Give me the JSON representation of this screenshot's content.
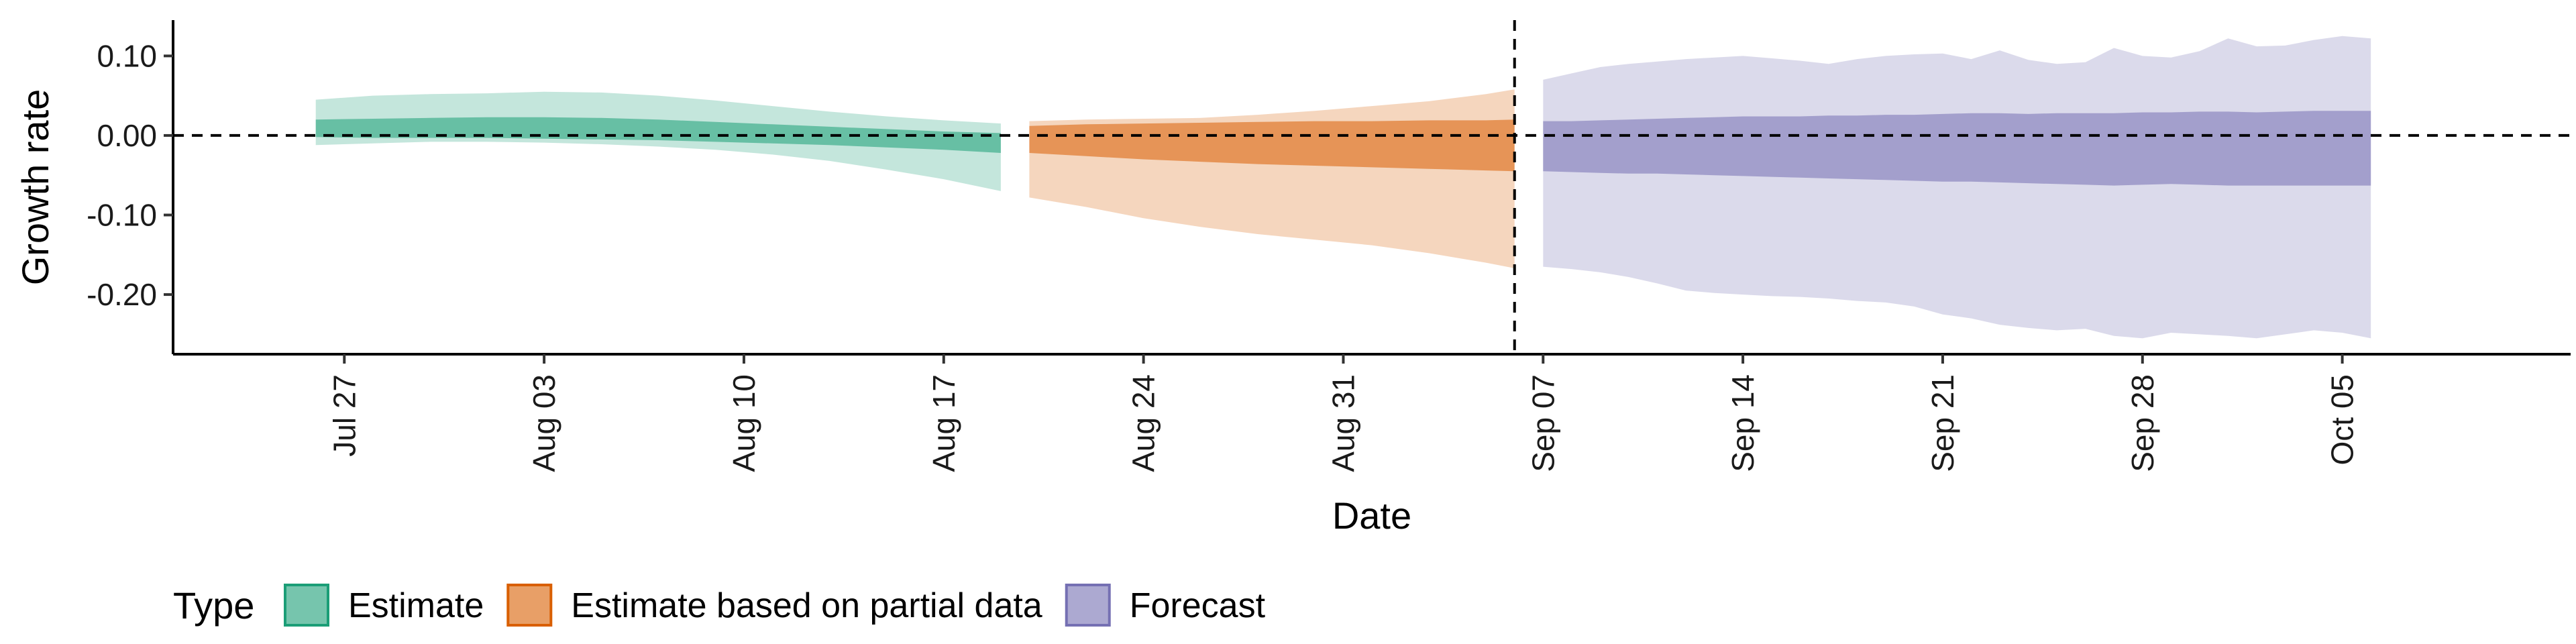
{
  "chart_data": {
    "type": "area",
    "xlabel": "Date",
    "ylabel": "Growth rate",
    "x_range": [
      "2021-07-21",
      "2021-10-13"
    ],
    "ylim": [
      -0.275,
      0.145
    ],
    "y_ticks": [
      0.1,
      0.0,
      -0.1,
      -0.2
    ],
    "y_tick_labels": [
      "0.10",
      "0.00",
      "-0.10",
      "-0.20"
    ],
    "x_ticks": [
      "2021-07-27",
      "2021-08-03",
      "2021-08-10",
      "2021-08-17",
      "2021-08-24",
      "2021-08-31",
      "2021-09-07",
      "2021-09-14",
      "2021-09-21",
      "2021-09-28",
      "2021-10-05"
    ],
    "x_tick_labels": [
      "Jul 27",
      "Aug 03",
      "Aug 10",
      "Aug 17",
      "Aug 24",
      "Aug 31",
      "Sep 07",
      "Sep 14",
      "Sep 21",
      "Sep 28",
      "Oct 05"
    ],
    "hline": 0.0,
    "vline": "2021-09-06",
    "grid": false,
    "legend": {
      "title": "Type",
      "position": "bottom-left",
      "items": [
        "Estimate",
        "Estimate based on partial data",
        "Forecast"
      ]
    },
    "colors": {
      "Estimate": "#1b9e77",
      "Estimate based on partial data": "#d95f02",
      "Forecast": "#7570b3"
    },
    "series": [
      {
        "name": "Estimate",
        "x": [
          "2021-07-26",
          "2021-07-28",
          "2021-07-30",
          "2021-08-01",
          "2021-08-03",
          "2021-08-05",
          "2021-08-07",
          "2021-08-09",
          "2021-08-11",
          "2021-08-13",
          "2021-08-15",
          "2021-08-17",
          "2021-08-19"
        ],
        "upper90": [
          0.045,
          0.05,
          0.052,
          0.053,
          0.055,
          0.054,
          0.05,
          0.044,
          0.037,
          0.03,
          0.024,
          0.019,
          0.015
        ],
        "upper50": [
          0.02,
          0.021,
          0.022,
          0.023,
          0.023,
          0.022,
          0.02,
          0.017,
          0.014,
          0.011,
          0.008,
          0.005,
          0.003
        ],
        "lower50": [
          -0.002,
          -0.003,
          -0.003,
          -0.003,
          -0.004,
          -0.005,
          -0.006,
          -0.008,
          -0.01,
          -0.012,
          -0.015,
          -0.018,
          -0.022
        ],
        "lower90": [
          -0.012,
          -0.01,
          -0.008,
          -0.008,
          -0.009,
          -0.011,
          -0.014,
          -0.018,
          -0.024,
          -0.032,
          -0.043,
          -0.055,
          -0.07
        ]
      },
      {
        "name": "Estimate based on partial data",
        "x": [
          "2021-08-20",
          "2021-08-22",
          "2021-08-24",
          "2021-08-26",
          "2021-08-28",
          "2021-08-30",
          "2021-09-01",
          "2021-09-03",
          "2021-09-05",
          "2021-09-06"
        ],
        "upper90": [
          0.018,
          0.02,
          0.021,
          0.022,
          0.026,
          0.031,
          0.037,
          0.043,
          0.052,
          0.058
        ],
        "upper50": [
          0.012,
          0.014,
          0.015,
          0.016,
          0.017,
          0.018,
          0.018,
          0.019,
          0.019,
          0.02
        ],
        "lower50": [
          -0.022,
          -0.026,
          -0.03,
          -0.033,
          -0.036,
          -0.038,
          -0.04,
          -0.042,
          -0.044,
          -0.045
        ],
        "lower90": [
          -0.078,
          -0.09,
          -0.104,
          -0.115,
          -0.124,
          -0.131,
          -0.138,
          -0.148,
          -0.16,
          -0.167
        ]
      },
      {
        "name": "Forecast",
        "x": [
          "2021-09-07",
          "2021-09-08",
          "2021-09-09",
          "2021-09-10",
          "2021-09-11",
          "2021-09-12",
          "2021-09-13",
          "2021-09-14",
          "2021-09-15",
          "2021-09-16",
          "2021-09-17",
          "2021-09-18",
          "2021-09-19",
          "2021-09-20",
          "2021-09-21",
          "2021-09-22",
          "2021-09-23",
          "2021-09-24",
          "2021-09-25",
          "2021-09-26",
          "2021-09-27",
          "2021-09-28",
          "2021-09-29",
          "2021-09-30",
          "2021-10-01",
          "2021-10-02",
          "2021-10-03",
          "2021-10-04",
          "2021-10-05",
          "2021-10-06"
        ],
        "upper90": [
          0.07,
          0.078,
          0.086,
          0.09,
          0.093,
          0.096,
          0.098,
          0.1,
          0.097,
          0.094,
          0.09,
          0.096,
          0.1,
          0.102,
          0.103,
          0.096,
          0.107,
          0.095,
          0.09,
          0.092,
          0.11,
          0.1,
          0.098,
          0.106,
          0.122,
          0.112,
          0.113,
          0.12,
          0.125,
          0.122
        ],
        "upper50": [
          0.018,
          0.018,
          0.019,
          0.02,
          0.021,
          0.022,
          0.023,
          0.024,
          0.024,
          0.024,
          0.025,
          0.025,
          0.026,
          0.026,
          0.027,
          0.028,
          0.028,
          0.027,
          0.028,
          0.028,
          0.028,
          0.029,
          0.029,
          0.03,
          0.03,
          0.029,
          0.03,
          0.031,
          0.031,
          0.031
        ],
        "lower50": [
          -0.045,
          -0.046,
          -0.047,
          -0.048,
          -0.048,
          -0.049,
          -0.05,
          -0.051,
          -0.052,
          -0.053,
          -0.054,
          -0.055,
          -0.056,
          -0.057,
          -0.058,
          -0.058,
          -0.059,
          -0.06,
          -0.061,
          -0.062,
          -0.063,
          -0.062,
          -0.061,
          -0.062,
          -0.063,
          -0.063,
          -0.063,
          -0.063,
          -0.063,
          -0.063
        ],
        "lower90": [
          -0.165,
          -0.168,
          -0.172,
          -0.178,
          -0.186,
          -0.195,
          -0.198,
          -0.2,
          -0.202,
          -0.203,
          -0.205,
          -0.208,
          -0.21,
          -0.215,
          -0.225,
          -0.23,
          -0.238,
          -0.242,
          -0.245,
          -0.243,
          -0.252,
          -0.255,
          -0.248,
          -0.25,
          -0.252,
          -0.255,
          -0.25,
          -0.245,
          -0.248,
          -0.255
        ]
      }
    ]
  }
}
